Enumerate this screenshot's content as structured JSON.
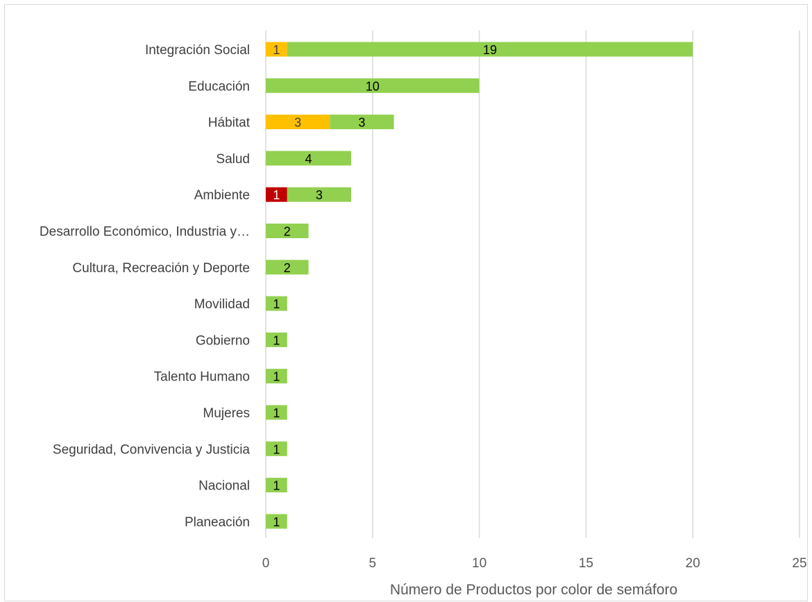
{
  "chart_data": {
    "type": "bar",
    "orientation": "horizontal",
    "stacked": true,
    "categories": [
      "Integración Social",
      "Educación",
      "Hábitat",
      "Salud",
      "Ambiente",
      "Desarrollo Económico, Industria y…",
      "Cultura, Recreación y Deporte",
      "Movilidad",
      "Gobierno",
      "Talento Humano",
      "Mujeres",
      "Seguridad, Convivencia y Justicia",
      "Nacional",
      "Planeación"
    ],
    "series": [
      {
        "key": "red",
        "color": "#c00000",
        "label_color": "#ffffff",
        "values": [
          0,
          0,
          0,
          0,
          1,
          0,
          0,
          0,
          0,
          0,
          0,
          0,
          0,
          0
        ]
      },
      {
        "key": "yellow",
        "color": "#ffc000",
        "label_color": "#404040",
        "values": [
          1,
          0,
          3,
          0,
          0,
          0,
          0,
          0,
          0,
          0,
          0,
          0,
          0,
          0
        ]
      },
      {
        "key": "green",
        "color": "#92d050",
        "label_color": "#000000",
        "values": [
          19,
          10,
          3,
          4,
          3,
          2,
          2,
          1,
          1,
          1,
          1,
          1,
          1,
          1
        ]
      }
    ],
    "xlim": [
      0,
      25
    ],
    "x_ticks": [
      "0",
      "5",
      "10",
      "15",
      "20",
      "25"
    ],
    "xlabel": "Número de Productos por color de semáforo",
    "ylabel": "",
    "title": "",
    "grid": "vertical",
    "legend": "none"
  }
}
